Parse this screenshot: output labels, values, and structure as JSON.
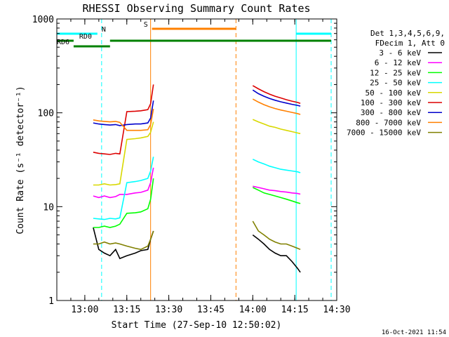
{
  "chart_data": {
    "type": "line",
    "title": "RHESSI Observing Summary Count Rates",
    "xlabel": "Start Time (27-Sep-10 12:50:02)",
    "ylabel": "Count Rate (s⁻¹ detector⁻¹)",
    "yscale": "log",
    "ylim": [
      1,
      1000
    ],
    "xlim_minutes": [
      0,
      100
    ],
    "x_ticks": [
      {
        "label": "13:00",
        "min": 10
      },
      {
        "label": "13:15",
        "min": 25
      },
      {
        "label": "13:30",
        "min": 40
      },
      {
        "label": "13:45",
        "min": 55
      },
      {
        "label": "14:00",
        "min": 70
      },
      {
        "label": "14:15",
        "min": 85
      },
      {
        "label": "14:30",
        "min": 100
      }
    ],
    "y_ticks": [
      {
        "label": "1",
        "v": 1
      },
      {
        "label": "10",
        "v": 10
      },
      {
        "label": "100",
        "v": 100
      },
      {
        "label": "1000",
        "v": 1000
      }
    ],
    "legend_header": [
      "Det 1,3,4,5,6,9,",
      "FDecim 1, Att 0"
    ],
    "series": [
      {
        "name": "3 - 6 keV",
        "color": "#000000",
        "values": [
          [
            13,
            6
          ],
          [
            15,
            3.5
          ],
          [
            17,
            3.2
          ],
          [
            19,
            3
          ],
          [
            21,
            3.5
          ],
          [
            22.5,
            2.8
          ],
          [
            25,
            3
          ],
          [
            28,
            3.2
          ],
          [
            30,
            3.4
          ],
          [
            32.5,
            3.5
          ],
          [
            33.5,
            4.5
          ],
          [
            34.5,
            5.5
          ],
          [
            70,
            5
          ],
          [
            72,
            4.5
          ],
          [
            74,
            4
          ],
          [
            76,
            3.5
          ],
          [
            78,
            3.2
          ],
          [
            80,
            3
          ],
          [
            82,
            3
          ],
          [
            84,
            2.6
          ],
          [
            86,
            2.2
          ],
          [
            87,
            2
          ]
        ]
      },
      {
        "name": "6 - 12 keV",
        "color": "#ff00ff",
        "values": [
          [
            13,
            13
          ],
          [
            15,
            12.5
          ],
          [
            17,
            13
          ],
          [
            19,
            12.5
          ],
          [
            21,
            12.8
          ],
          [
            22.5,
            13.5
          ],
          [
            25,
            13.5
          ],
          [
            28,
            14
          ],
          [
            30,
            14.2
          ],
          [
            32.5,
            15
          ],
          [
            33.5,
            18
          ],
          [
            34.5,
            26
          ],
          [
            70,
            16.5
          ],
          [
            72,
            16
          ],
          [
            74,
            15.5
          ],
          [
            76,
            15
          ],
          [
            78,
            14.8
          ],
          [
            80,
            14.5
          ],
          [
            82,
            14.3
          ],
          [
            84,
            14
          ],
          [
            86,
            13.8
          ],
          [
            87,
            13.6
          ]
        ]
      },
      {
        "name": "12 - 25 keV",
        "color": "#00ff00",
        "values": [
          [
            13,
            6
          ],
          [
            15,
            6
          ],
          [
            17,
            6.2
          ],
          [
            19,
            6
          ],
          [
            21,
            6.2
          ],
          [
            22.5,
            6.5
          ],
          [
            25,
            8.5
          ],
          [
            28,
            8.6
          ],
          [
            30,
            8.8
          ],
          [
            32.5,
            9.5
          ],
          [
            33.5,
            12
          ],
          [
            34.5,
            20
          ],
          [
            70,
            16
          ],
          [
            72,
            15
          ],
          [
            74,
            14
          ],
          [
            76,
            13.5
          ],
          [
            78,
            13
          ],
          [
            80,
            12.5
          ],
          [
            82,
            12
          ],
          [
            84,
            11.5
          ],
          [
            86,
            11
          ],
          [
            87,
            10.8
          ]
        ]
      },
      {
        "name": "25 - 50 keV",
        "color": "#00ffff",
        "values": [
          [
            13,
            7.5
          ],
          [
            15,
            7.4
          ],
          [
            17,
            7.3
          ],
          [
            19,
            7.5
          ],
          [
            21,
            7.4
          ],
          [
            22.5,
            7.6
          ],
          [
            25,
            18
          ],
          [
            28,
            18.5
          ],
          [
            30,
            19
          ],
          [
            32.5,
            20
          ],
          [
            33.5,
            24
          ],
          [
            34.5,
            34
          ],
          [
            70,
            32
          ],
          [
            72,
            30
          ],
          [
            74,
            28.5
          ],
          [
            76,
            27
          ],
          [
            78,
            26
          ],
          [
            80,
            25
          ],
          [
            82,
            24.5
          ],
          [
            84,
            24
          ],
          [
            86,
            23.5
          ],
          [
            87,
            23
          ]
        ]
      },
      {
        "name": "50 - 100 keV",
        "color": "#d8d800",
        "values": [
          [
            13,
            17
          ],
          [
            15,
            17
          ],
          [
            17,
            17.5
          ],
          [
            19,
            17
          ],
          [
            21,
            17.2
          ],
          [
            22.5,
            17.5
          ],
          [
            25,
            52
          ],
          [
            28,
            53
          ],
          [
            30,
            54
          ],
          [
            32.5,
            56
          ],
          [
            33.5,
            62
          ],
          [
            34.5,
            80
          ],
          [
            70,
            85
          ],
          [
            72,
            80
          ],
          [
            74,
            76
          ],
          [
            76,
            72
          ],
          [
            78,
            70
          ],
          [
            80,
            67
          ],
          [
            82,
            65
          ],
          [
            84,
            63
          ],
          [
            86,
            61
          ],
          [
            87,
            60
          ]
        ]
      },
      {
        "name": "100 - 300 keV",
        "color": "#dd0000",
        "values": [
          [
            13,
            38
          ],
          [
            15,
            37
          ],
          [
            17,
            36.5
          ],
          [
            19,
            36
          ],
          [
            21,
            37
          ],
          [
            22.5,
            36.5
          ],
          [
            25,
            103
          ],
          [
            28,
            104
          ],
          [
            30,
            105
          ],
          [
            32.5,
            108
          ],
          [
            33.5,
            125
          ],
          [
            34.5,
            200
          ],
          [
            70,
            195
          ],
          [
            72,
            180
          ],
          [
            74,
            168
          ],
          [
            76,
            158
          ],
          [
            78,
            150
          ],
          [
            80,
            144
          ],
          [
            82,
            138
          ],
          [
            84,
            133
          ],
          [
            86,
            129
          ],
          [
            87,
            126
          ]
        ]
      },
      {
        "name": "300 - 800 keV",
        "color": "#0000cc",
        "values": [
          [
            13,
            78
          ],
          [
            15,
            76
          ],
          [
            17,
            75
          ],
          [
            19,
            74
          ],
          [
            21,
            75
          ],
          [
            22.5,
            73
          ],
          [
            25,
            75
          ],
          [
            28,
            76
          ],
          [
            30,
            76
          ],
          [
            32.5,
            78
          ],
          [
            33.5,
            88
          ],
          [
            34.5,
            135
          ],
          [
            70,
            175
          ],
          [
            72,
            160
          ],
          [
            74,
            150
          ],
          [
            76,
            142
          ],
          [
            78,
            136
          ],
          [
            80,
            131
          ],
          [
            82,
            127
          ],
          [
            84,
            123
          ],
          [
            86,
            120
          ],
          [
            87,
            118
          ]
        ]
      },
      {
        "name": "800 - 7000 keV",
        "color": "#ff8000",
        "values": [
          [
            13,
            84
          ],
          [
            15,
            82
          ],
          [
            17,
            81
          ],
          [
            19,
            80
          ],
          [
            21,
            81
          ],
          [
            22.5,
            79
          ],
          [
            25,
            65
          ],
          [
            28,
            65
          ],
          [
            30,
            65
          ],
          [
            32.5,
            66
          ],
          [
            33.5,
            75
          ],
          [
            34.5,
            110
          ],
          [
            70,
            140
          ],
          [
            72,
            130
          ],
          [
            74,
            122
          ],
          [
            76,
            116
          ],
          [
            78,
            111
          ],
          [
            80,
            107
          ],
          [
            82,
            104
          ],
          [
            84,
            101
          ],
          [
            86,
            98
          ],
          [
            87,
            96
          ]
        ]
      },
      {
        "name": "7000 - 15000 keV",
        "color": "#808000",
        "values": [
          [
            13,
            4
          ],
          [
            15,
            4
          ],
          [
            17,
            4.2
          ],
          [
            19,
            4
          ],
          [
            21,
            4.1
          ],
          [
            22.5,
            4
          ],
          [
            25,
            3.8
          ],
          [
            28,
            3.6
          ],
          [
            30,
            3.5
          ],
          [
            32.5,
            3.8
          ],
          [
            33.5,
            4.5
          ],
          [
            34.5,
            5.5
          ],
          [
            70,
            7
          ],
          [
            72,
            5.5
          ],
          [
            74,
            5
          ],
          [
            76,
            4.5
          ],
          [
            78,
            4.2
          ],
          [
            80,
            4
          ],
          [
            82,
            4
          ],
          [
            84,
            3.8
          ],
          [
            86,
            3.6
          ],
          [
            87,
            3.5
          ]
        ]
      }
    ],
    "bars": [
      {
        "label": "N",
        "color": "#00ffff",
        "segments": [
          [
            0,
            14.5
          ],
          [
            85.5,
            98
          ]
        ],
        "label_min": 16
      },
      {
        "label": "S",
        "color": "#ff8000",
        "segments": [
          [
            34,
            64
          ]
        ],
        "label_min": 31
      },
      {
        "label": "RD0",
        "color": "#008000",
        "segments": [
          [
            0,
            6
          ],
          [
            19,
            98
          ]
        ],
        "label_min": 8
      },
      {
        "label": "RD6",
        "color": "#008000",
        "segments": [
          [
            6,
            19
          ]
        ],
        "label_min": 0
      }
    ],
    "vlines": [
      {
        "color": "#00ffff",
        "style": "solid",
        "min": 0
      },
      {
        "color": "#00ffff",
        "style": "dashed",
        "min": 16
      },
      {
        "color": "#ff8000",
        "style": "solid",
        "min": 33.5
      },
      {
        "color": "#ff8000",
        "style": "dashed",
        "min": 64
      },
      {
        "color": "#00ffff",
        "style": "solid",
        "min": 85.5
      },
      {
        "color": "#00ffff",
        "style": "dashed",
        "min": 98
      }
    ],
    "footer_date": "16-Oct-2021 11:54"
  }
}
